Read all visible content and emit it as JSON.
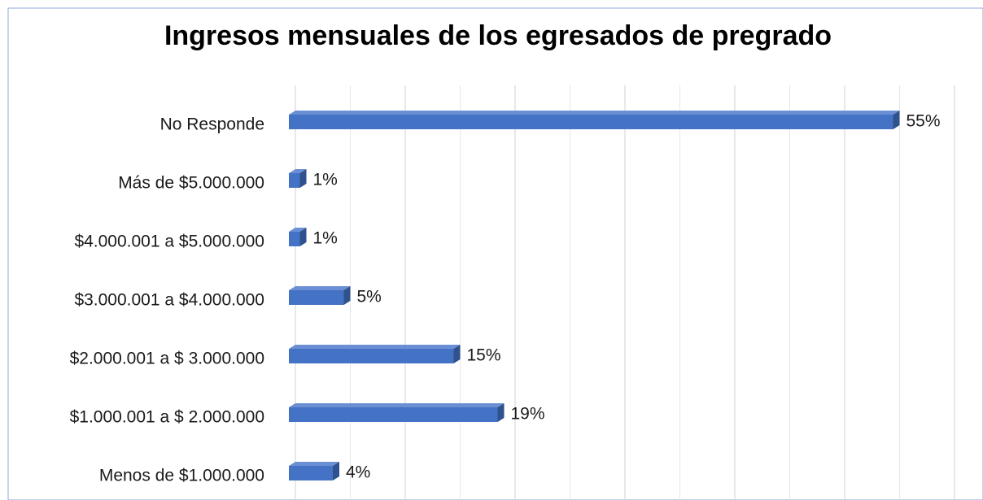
{
  "chart_data": {
    "type": "bar",
    "orientation": "horizontal",
    "title": "Ingresos mensuales de los egresados de pregrado",
    "categories": [
      "No Responde",
      "Más de $5.000.000",
      "$4.000.001 a $5.000.000",
      "$3.000.001 a $4.000.000",
      "$2.000.001 a $ 3.000.000",
      "$1.000.001 a $ 2.000.000",
      "Menos de $1.000.000"
    ],
    "values": [
      55,
      1,
      1,
      5,
      15,
      19,
      4
    ],
    "value_labels": [
      "55%",
      "1%",
      "1%",
      "5%",
      "15%",
      "19%",
      "4%"
    ],
    "color": "#4472c4",
    "xlim": [
      0,
      60
    ],
    "xticks": [
      0,
      5,
      10,
      15,
      20,
      25,
      30,
      35,
      40,
      45,
      50,
      55,
      60
    ],
    "grid": true
  }
}
